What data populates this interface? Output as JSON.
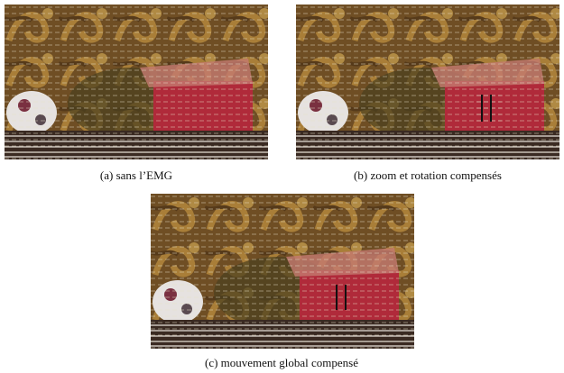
{
  "figure": {
    "panels": [
      {
        "caption": "(a) sans l’EMG"
      },
      {
        "caption": "(b) zoom et rotation compensés"
      },
      {
        "caption": "(c) mouvement global compensé"
      }
    ]
  }
}
